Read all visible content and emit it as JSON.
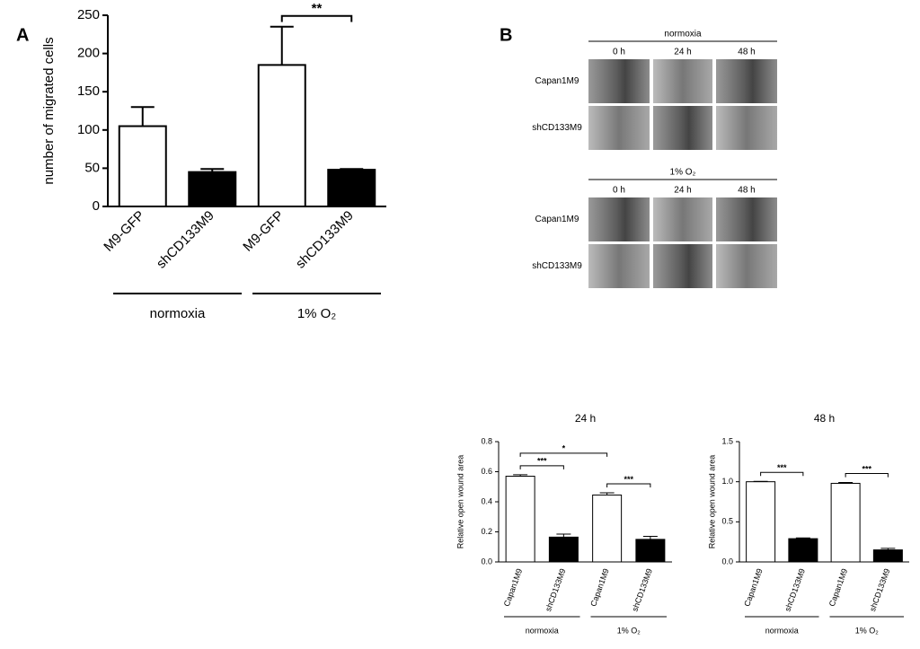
{
  "panel_labels": [
    "A",
    "B"
  ],
  "chart_data": [
    {
      "type": "bar",
      "ylabel": "number of migrated cells",
      "categories": [
        "M9-GFP",
        "shCD133M9",
        "M9-GFP",
        "shCD133M9"
      ],
      "values": [
        105,
        45,
        185,
        48
      ],
      "errors": [
        25,
        4,
        50,
        1
      ],
      "bar_colors": [
        "#ffffff",
        "#000000",
        "#ffffff",
        "#000000"
      ],
      "ylim": [
        0,
        250
      ],
      "yticks": [
        0,
        50,
        100,
        150,
        200,
        250
      ],
      "group_labels": [
        "normoxia",
        "1% O₂"
      ],
      "annotations": [
        {
          "text": "**",
          "between": [
            2,
            3
          ]
        }
      ]
    },
    {
      "type": "bar",
      "title": "24 h",
      "ylabel": "Relative open wound area",
      "categories": [
        "Capan1M9",
        "shCD133M9",
        "Capan1M9",
        "shCD133M9"
      ],
      "values": [
        0.57,
        0.165,
        0.445,
        0.15
      ],
      "errors": [
        0.01,
        0.02,
        0.015,
        0.02
      ],
      "bar_colors": [
        "#ffffff",
        "#000000",
        "#ffffff",
        "#000000"
      ],
      "ylim": [
        0,
        0.8
      ],
      "yticks": [
        {
          "value": 0,
          "label": "0.0"
        },
        0.2,
        0.4,
        0.6,
        0.8
      ],
      "group_labels": [
        "normoxia",
        "1% O₂"
      ],
      "annotations": [
        {
          "text": "***",
          "between": [
            0,
            1
          ]
        },
        {
          "text": "***",
          "between": [
            2,
            3
          ]
        },
        {
          "text": "*",
          "between": [
            0,
            2
          ]
        }
      ]
    },
    {
      "type": "bar",
      "title": "48 h",
      "ylabel": "Relative open wound area",
      "categories": [
        "Capan1M9",
        "shCD133M9",
        "Capan1M9",
        "shCD133M9"
      ],
      "values": [
        1.0,
        0.29,
        0.98,
        0.15
      ],
      "errors": [
        0.005,
        0.01,
        0.01,
        0.02
      ],
      "bar_colors": [
        "#ffffff",
        "#000000",
        "#ffffff",
        "#000000"
      ],
      "ylim": [
        0,
        1.5
      ],
      "yticks": [
        {
          "value": 0,
          "label": "0.0"
        },
        0.5,
        {
          "value": 1,
          "label": "1.0"
        },
        1.5
      ],
      "group_labels": [
        "normoxia",
        "1% O₂"
      ],
      "annotations": [
        {
          "text": "***",
          "between": [
            0,
            1
          ]
        },
        {
          "text": "***",
          "between": [
            2,
            3
          ]
        }
      ]
    }
  ],
  "image_grid": [
    {
      "condition": "normoxia",
      "columns": [
        "0 h",
        "24 h",
        "48 h"
      ],
      "rows": [
        "Capan1M9",
        "shCD133M9"
      ]
    },
    {
      "condition": "1% O₂",
      "columns": [
        "0 h",
        "24 h",
        "48 h"
      ],
      "rows": [
        "Capan1M9",
        "shCD133M9"
      ]
    }
  ]
}
